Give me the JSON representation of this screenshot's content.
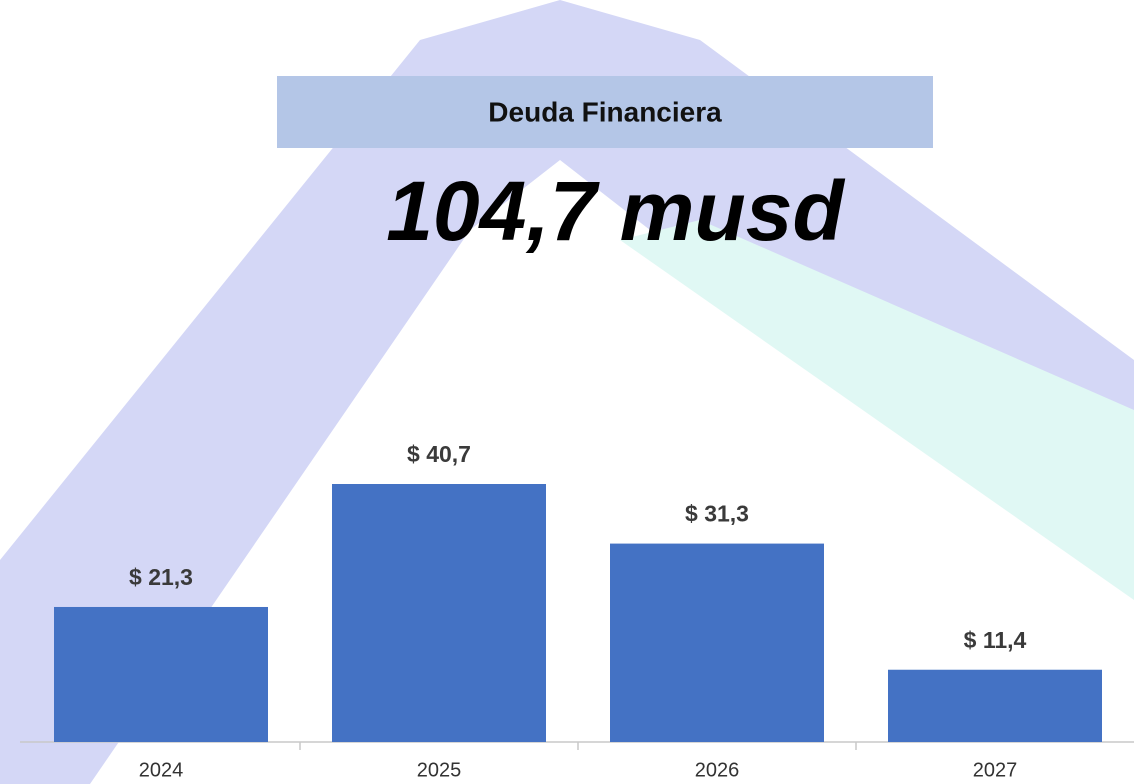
{
  "chart_data": {
    "type": "bar",
    "title": "Deuda Financiera",
    "headline": "104,7 musd",
    "categories": [
      "2024",
      "2025",
      "2026",
      "2027"
    ],
    "values": [
      21.3,
      40.7,
      31.3,
      11.4
    ],
    "value_labels": [
      "$ 21,3",
      "$ 40,7",
      "$ 31,3",
      "$ 11,4"
    ],
    "color": "#4472c4"
  }
}
